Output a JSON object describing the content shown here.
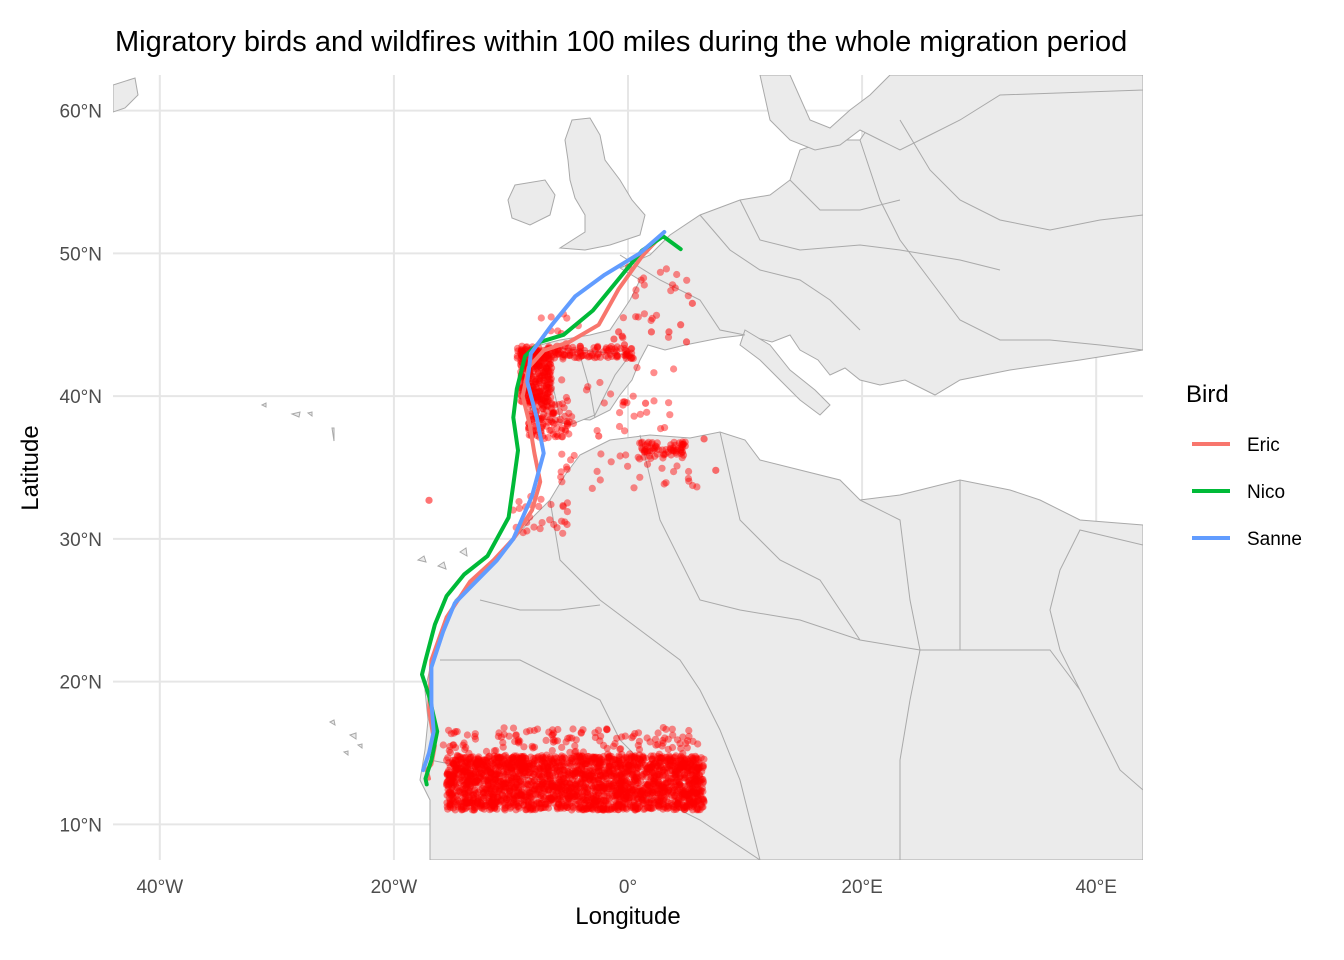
{
  "chart_data": {
    "type": "scatter",
    "title": "Migratory birds and wildfires within 100 miles during the whole migration period",
    "xlabel": "Longitude",
    "ylabel": "Latitude",
    "xlim": [
      -44,
      44
    ],
    "ylim": [
      7.5,
      62.5
    ],
    "x_ticks": [
      -40,
      -20,
      0,
      20,
      40
    ],
    "x_tick_labels": [
      "40°W",
      "20°W",
      "0°",
      "20°E",
      "40°E"
    ],
    "y_ticks": [
      10,
      20,
      30,
      40,
      50,
      60
    ],
    "y_tick_labels": [
      "10°N",
      "20°N",
      "30°N",
      "40°N",
      "50°N",
      "60°N"
    ],
    "grid": true,
    "legend": {
      "title": "Bird",
      "position": "right"
    },
    "series": [
      {
        "name": "Eric",
        "color": "#F8766D",
        "x": [
          2.9,
          1.2,
          -0.8,
          -2.5,
          -5,
          -7.2,
          -8.5,
          -9,
          -8.4,
          -8,
          -7.5,
          -8.2,
          -9.8,
          -11.5,
          -13.5,
          -15.5,
          -16.8,
          -17,
          -16.5,
          -16.8,
          -17.2,
          -17
        ],
        "y": [
          51.3,
          49.8,
          47.5,
          45,
          43.8,
          43.2,
          42,
          40,
          38,
          36,
          34,
          32,
          30,
          28.5,
          27,
          24.5,
          21.5,
          18,
          15.5,
          14.2,
          13.8,
          13.2
        ]
      },
      {
        "name": "Nico",
        "color": "#00BA38",
        "x": [
          4.5,
          3,
          1.2,
          -0.8,
          -3,
          -5.5,
          -7.5,
          -8.8,
          -9.5,
          -9.8,
          -9.4,
          -9.8,
          -10.2,
          -12,
          -14,
          -15.5,
          -16.5,
          -17.3,
          -17.6,
          -17,
          -16.3,
          -16.8,
          -17.3,
          -17.2
        ],
        "y": [
          50.3,
          51.2,
          50.2,
          48.2,
          46,
          44.3,
          43.8,
          42.8,
          40.5,
          38.5,
          36.2,
          33.8,
          31.5,
          28.8,
          27.5,
          26,
          24,
          21.5,
          20.5,
          19,
          16.5,
          14.5,
          13.2,
          12.8
        ]
      },
      {
        "name": "Sanne",
        "color": "#619CFF",
        "x": [
          3.1,
          1,
          -2,
          -4.5,
          -6.5,
          -8.3,
          -8.6,
          -7.8,
          -7.2,
          -8.2,
          -9.8,
          -11.2,
          -13,
          -14.8,
          -15.8,
          -16.8,
          -16.8,
          -16.6,
          -17,
          -17.5
        ],
        "y": [
          51.5,
          50,
          48.5,
          47,
          45,
          43,
          41,
          38.5,
          36,
          33,
          30,
          28.5,
          27,
          25.5,
          23.5,
          21,
          18.5,
          16.5,
          15,
          13.8
        ]
      }
    ],
    "wildfires": {
      "color": "#FF0000",
      "clusters": [
        {
          "x_range": [
            -15.5,
            6.5
          ],
          "y_range": [
            11,
            14.8
          ],
          "count": 2200
        },
        {
          "x_range": [
            -16,
            6
          ],
          "y_range": [
            14.5,
            16.8
          ],
          "count": 160
        },
        {
          "x_range": [
            -9.2,
            -6.5
          ],
          "y_range": [
            39.5,
            43.2
          ],
          "count": 260
        },
        {
          "x_range": [
            -9.5,
            0.5
          ],
          "y_range": [
            42.6,
            43.5
          ],
          "count": 140
        },
        {
          "x_range": [
            -8.5,
            -5
          ],
          "y_range": [
            37,
            39.5
          ],
          "count": 90
        },
        {
          "x_range": [
            0.5,
            5
          ],
          "y_range": [
            35.6,
            36.8
          ],
          "count": 70
        },
        {
          "x_range": [
            -10,
            -5
          ],
          "y_range": [
            30.2,
            33
          ],
          "count": 28
        },
        {
          "x_range": [
            -6,
            6
          ],
          "y_range": [
            33.5,
            36.2
          ],
          "count": 30
        },
        {
          "x_range": [
            -7.5,
            4
          ],
          "y_range": [
            37.5,
            46
          ],
          "count": 55
        },
        {
          "x_range": [
            0,
            5.5
          ],
          "y_range": [
            47,
            49.2
          ],
          "count": 14
        }
      ],
      "points": [
        {
          "x": -17,
          "y": 32.7
        },
        {
          "x": -1.2,
          "y": 44
        },
        {
          "x": -0.8,
          "y": 44.5
        },
        {
          "x": -0.5,
          "y": 44.2
        },
        {
          "x": -0.3,
          "y": 43.6
        },
        {
          "x": 2,
          "y": 44.5
        },
        {
          "x": 3.5,
          "y": 44.5
        },
        {
          "x": 4.5,
          "y": 45
        },
        {
          "x": 5.5,
          "y": 46.5
        },
        {
          "x": 5,
          "y": 43.8
        },
        {
          "x": 1.5,
          "y": 39.5
        },
        {
          "x": -0.3,
          "y": 39.6
        },
        {
          "x": -2.5,
          "y": 37.2
        },
        {
          "x": 6.5,
          "y": 37
        },
        {
          "x": 7.5,
          "y": 34.8
        }
      ]
    }
  }
}
